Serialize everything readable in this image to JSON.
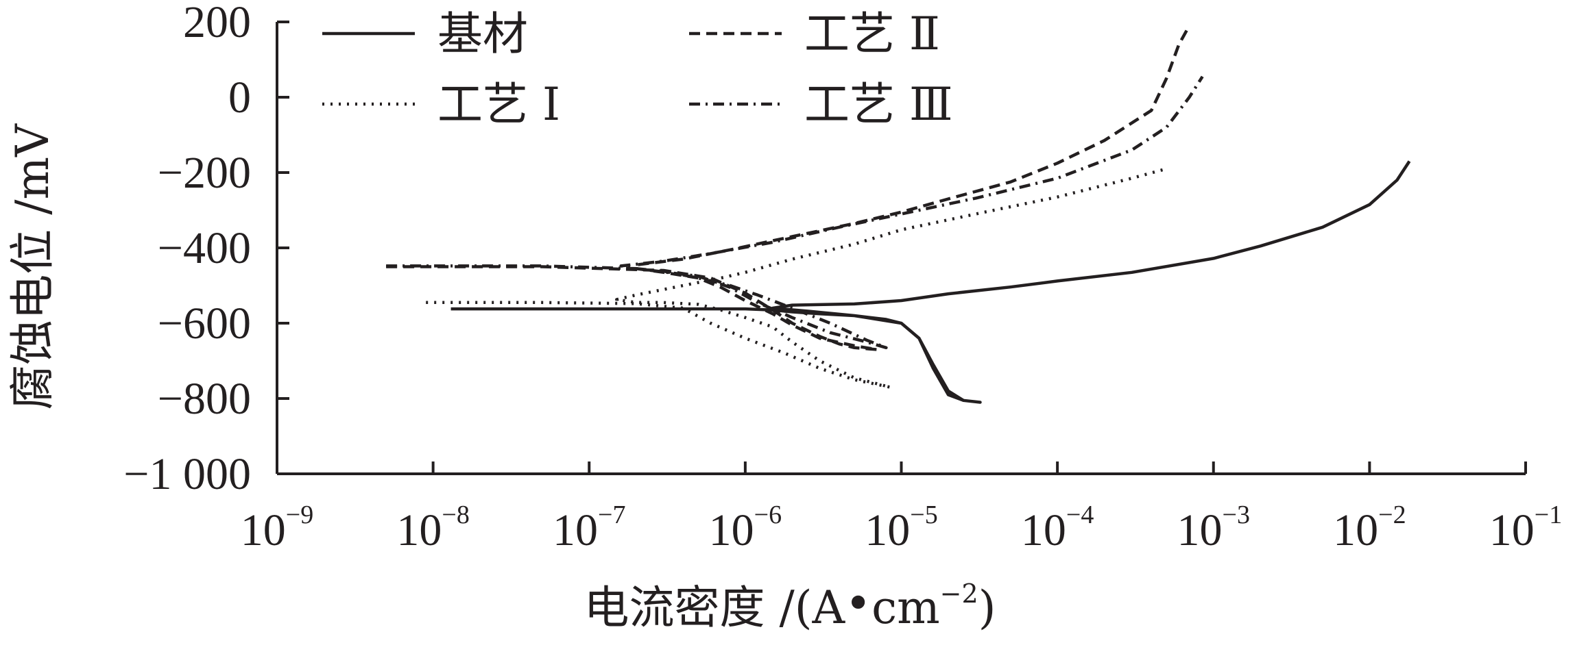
{
  "chart_data": {
    "type": "line",
    "xlabel_main": "电流密度 /(A",
    "xlabel_dot": "•",
    "xlabel_unit": "cm",
    "xlabel_sup": "−2",
    "xlabel_close": ")",
    "ylabel": "腐蚀电位 /mV",
    "x_scale": "log",
    "xlim": [
      1e-09,
      0.1
    ],
    "ylim": [
      -1000,
      200
    ],
    "x_ticks": [
      {
        "base": "10",
        "exp": "−9",
        "value": 1e-09
      },
      {
        "base": "10",
        "exp": "−8",
        "value": 1e-08
      },
      {
        "base": "10",
        "exp": "−7",
        "value": 1e-07
      },
      {
        "base": "10",
        "exp": "−6",
        "value": 1e-06
      },
      {
        "base": "10",
        "exp": "−5",
        "value": 1e-05
      },
      {
        "base": "10",
        "exp": "−4",
        "value": 0.0001
      },
      {
        "base": "10",
        "exp": "−3",
        "value": 0.001
      },
      {
        "base": "10",
        "exp": "−2",
        "value": 0.01
      },
      {
        "base": "10",
        "exp": "−1",
        "value": 0.1
      }
    ],
    "y_ticks": [
      {
        "label": "200",
        "value": 200
      },
      {
        "label": "0",
        "value": 0
      },
      {
        "label": "−200",
        "value": -200
      },
      {
        "label": "−400",
        "value": -400
      },
      {
        "label": "−600",
        "value": -600
      },
      {
        "label": "−800",
        "value": -800
      },
      {
        "label": "−1 000",
        "value": -1000
      }
    ],
    "grid": false,
    "legend_position": "top",
    "series": [
      {
        "name": "基材",
        "style": "solid",
        "x": [
          1.3e-08,
          1e-07,
          5e-07,
          1e-06,
          1.5e-06,
          2e-06,
          3e-06,
          5e-06,
          8e-06,
          1e-05,
          1.3e-05,
          1.6e-05,
          2e-05,
          2.5e-05,
          3.2e-05,
          2.5e-05,
          2e-05,
          1.6e-05,
          1.3e-05,
          1e-05,
          5e-06,
          2.5e-06,
          1.5e-06,
          2e-06,
          5e-06,
          1e-05,
          2e-05,
          5e-05,
          0.0001,
          0.0003,
          0.001,
          0.002,
          0.005,
          0.01,
          0.015,
          0.018
        ],
        "y": [
          -562,
          -562,
          -562,
          -562,
          -565,
          -570,
          -575,
          -580,
          -590,
          -600,
          -640,
          -710,
          -780,
          -805,
          -810,
          -805,
          -790,
          -720,
          -640,
          -600,
          -580,
          -568,
          -560,
          -552,
          -549,
          -540,
          -522,
          -504,
          -488,
          -465,
          -428,
          -395,
          -345,
          -285,
          -220,
          -170
        ]
      },
      {
        "name": "工艺 Ⅰ",
        "style": "dotted",
        "x": [
          9e-09,
          5e-08,
          2e-07,
          4e-07,
          6e-07,
          1e-06,
          1.8e-06,
          3e-06,
          5e-06,
          8.5e-06,
          5e-06,
          3e-06,
          2e-06,
          1.5e-06,
          1e-06,
          7e-07,
          5e-07,
          3e-07,
          2e-07,
          1.5e-07,
          2e-07,
          4e-07,
          7e-07,
          1e-06,
          2e-06,
          5e-06,
          1e-05,
          3e-05,
          0.0001,
          0.0003,
          0.0005
        ],
        "y": [
          -545,
          -545,
          -548,
          -560,
          -600,
          -640,
          -680,
          -720,
          -750,
          -770,
          -745,
          -700,
          -650,
          -610,
          -585,
          -565,
          -550,
          -545,
          -545,
          -537,
          -525,
          -500,
          -480,
          -465,
          -430,
          -390,
          -352,
          -310,
          -265,
          -215,
          -190
        ]
      },
      {
        "name": "工艺 Ⅱ",
        "style": "dashed",
        "x": [
          5e-09,
          5e-08,
          3e-07,
          6e-07,
          1e-06,
          1.5e-06,
          2e-06,
          3e-06,
          4e-06,
          5e-06,
          7e-06,
          5e-06,
          3e-06,
          2e-06,
          1.5e-06,
          1e-06,
          7e-07,
          5e-07,
          3e-07,
          2e-07,
          2e-07,
          4e-07,
          8e-07,
          2e-06,
          5e-06,
          1e-05,
          2e-05,
          5e-05,
          0.0001,
          0.0002,
          0.0004,
          0.0005,
          0.0006,
          0.0007
        ],
        "y": [
          -450,
          -450,
          -460,
          -480,
          -520,
          -565,
          -600,
          -635,
          -655,
          -665,
          -670,
          -660,
          -640,
          -605,
          -575,
          -540,
          -505,
          -480,
          -465,
          -455,
          -445,
          -430,
          -405,
          -370,
          -335,
          -305,
          -270,
          -225,
          -175,
          -115,
          -35,
          50,
          140,
          190
        ]
      },
      {
        "name": "工艺 Ⅲ",
        "style": "dashdot",
        "x": [
          5e-09,
          5e-08,
          2e-07,
          5e-07,
          8e-07,
          1.2e-06,
          2e-06,
          3.5e-06,
          6e-06,
          8e-06,
          6e-06,
          3.5e-06,
          2e-06,
          1.2e-06,
          8e-07,
          5e-07,
          3e-07,
          2e-07,
          1.6e-07,
          3e-07,
          6e-07,
          1.5e-06,
          4e-06,
          1e-05,
          3e-05,
          0.0001,
          0.0003,
          0.0005,
          0.0007,
          0.00085
        ],
        "y": [
          -448,
          -448,
          -455,
          -475,
          -505,
          -545,
          -585,
          -625,
          -650,
          -665,
          -645,
          -600,
          -560,
          -525,
          -500,
          -480,
          -462,
          -455,
          -448,
          -435,
          -415,
          -385,
          -345,
          -310,
          -268,
          -215,
          -140,
          -80,
          0,
          55
        ]
      }
    ]
  }
}
